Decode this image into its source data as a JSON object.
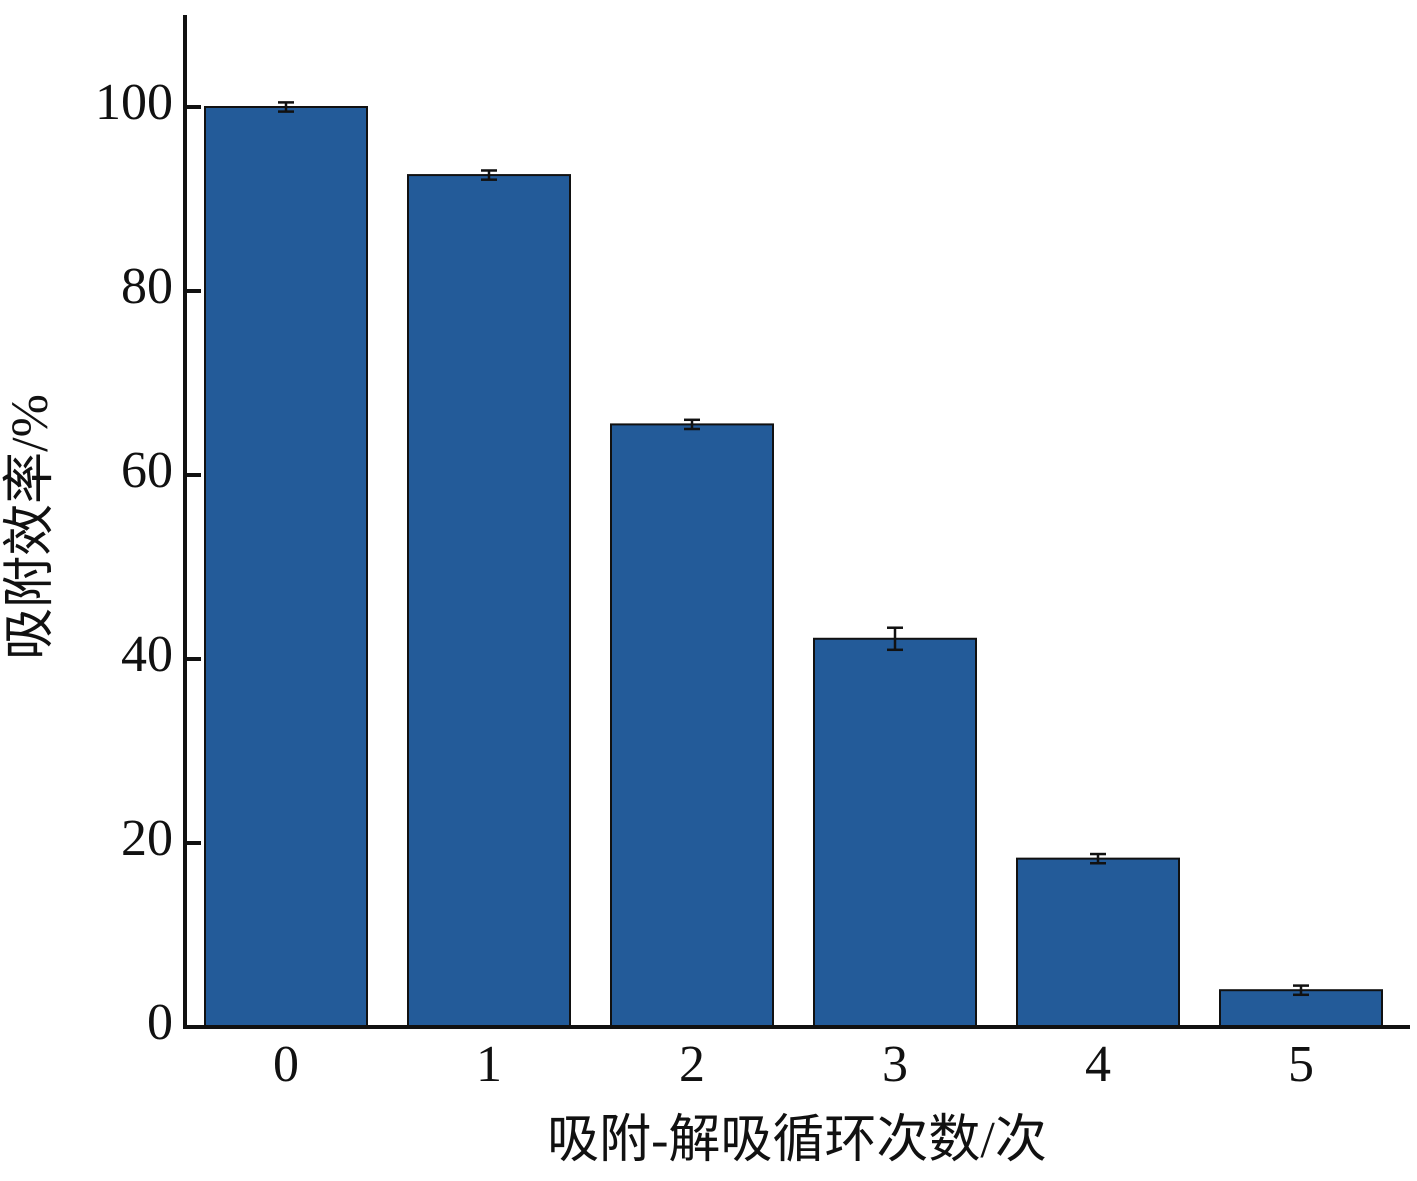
{
  "chart_data": {
    "type": "bar",
    "xlabel": "吸附-解吸循环次数/次",
    "ylabel": "吸附效率/%",
    "categories": [
      "0",
      "1",
      "2",
      "3",
      "4",
      "5"
    ],
    "values": [
      100,
      92.6,
      65.5,
      42.2,
      18.3,
      4.0
    ],
    "errors": [
      0.5,
      0.5,
      0.5,
      1.2,
      0.5,
      0.5
    ],
    "color": "#235b99",
    "ylim": [
      0,
      110
    ],
    "yticks": [
      0,
      20,
      40,
      60,
      80,
      100
    ]
  }
}
